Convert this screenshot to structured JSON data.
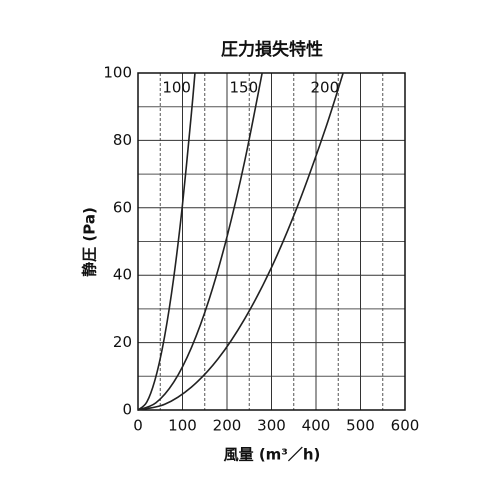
{
  "chart_data": {
    "type": "line",
    "title": "圧力損失特性",
    "xlabel": "風量 (m³／h)",
    "ylabel": "静圧 (Pa)",
    "xlim": [
      0,
      600
    ],
    "xticks": [
      0,
      100,
      200,
      300,
      400,
      500,
      600
    ],
    "xminor": [
      50,
      150,
      250,
      350,
      450,
      550
    ],
    "ylim": [
      0,
      100
    ],
    "yticks": [
      0,
      20,
      40,
      60,
      80,
      100
    ],
    "yminor": [
      10,
      30,
      50,
      70,
      90
    ],
    "grid": true,
    "series": [
      {
        "name": "100",
        "color": "#222222",
        "x": [
          0,
          20,
          40,
          60,
          80,
          100,
          120,
          128
        ],
        "values": [
          0,
          2.4,
          9.8,
          22,
          39,
          61,
          88,
          100
        ]
      },
      {
        "name": "150",
        "color": "#222222",
        "x": [
          0,
          40,
          80,
          120,
          160,
          200,
          240,
          279
        ],
        "values": [
          0,
          2.1,
          8.2,
          18.5,
          32.9,
          51.4,
          74,
          100
        ]
      },
      {
        "name": "200",
        "color": "#222222",
        "x": [
          0,
          60,
          120,
          180,
          240,
          300,
          360,
          420,
          461
        ],
        "values": [
          0,
          1.7,
          6.8,
          15.2,
          27.1,
          42.3,
          61,
          83,
          100
        ]
      }
    ]
  }
}
